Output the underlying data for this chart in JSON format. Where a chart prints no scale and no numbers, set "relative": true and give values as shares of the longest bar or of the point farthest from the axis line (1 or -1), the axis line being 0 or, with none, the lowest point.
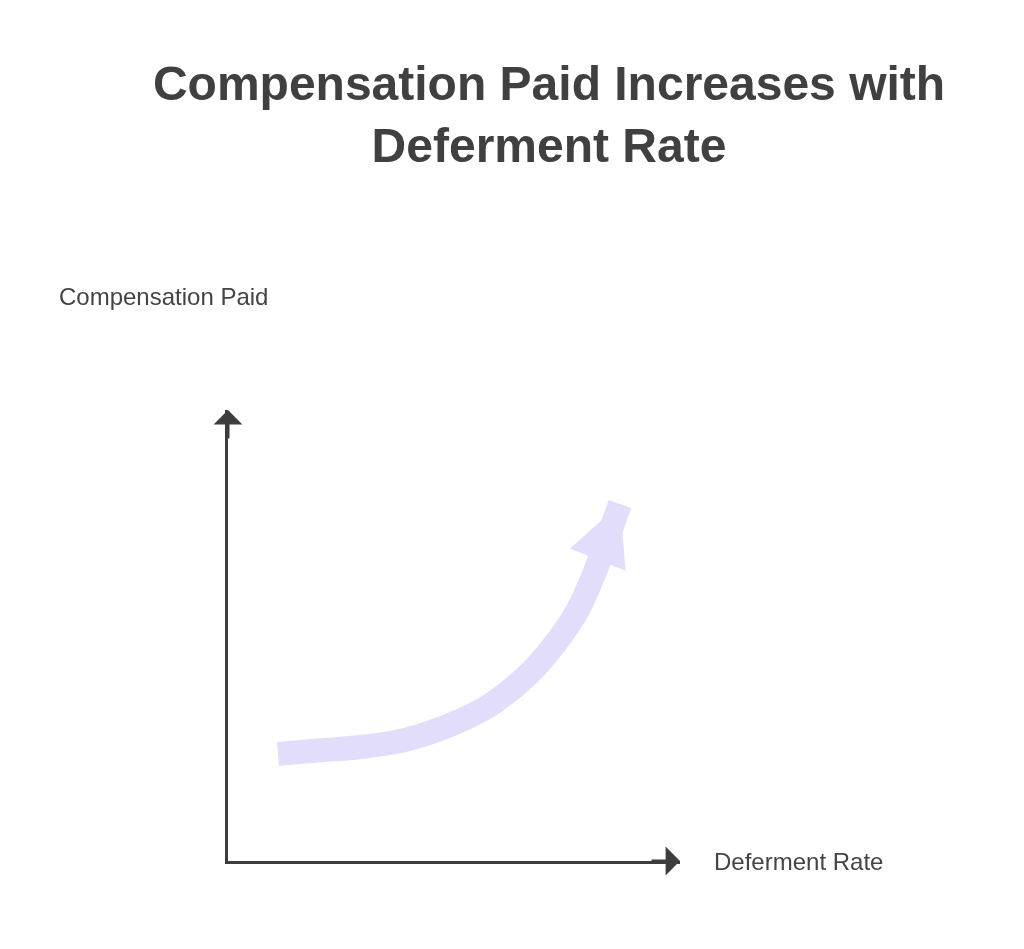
{
  "chart_data": {
    "type": "line",
    "title": "Compensation Paid Increases with Deferment Rate",
    "xlabel": "Deferment Rate",
    "annotations": [
      "Compensation Paid"
    ],
    "relative": true,
    "categories": [
      null,
      null,
      null,
      null,
      null,
      null,
      null,
      null,
      null
    ],
    "series": [
      {
        "color": "#e3ddfc",
        "values": [
          0.3,
          0.31,
          0.32,
          0.34,
          0.38,
          0.44,
          0.54,
          0.7,
          1.0
        ]
      }
    ]
  }
}
